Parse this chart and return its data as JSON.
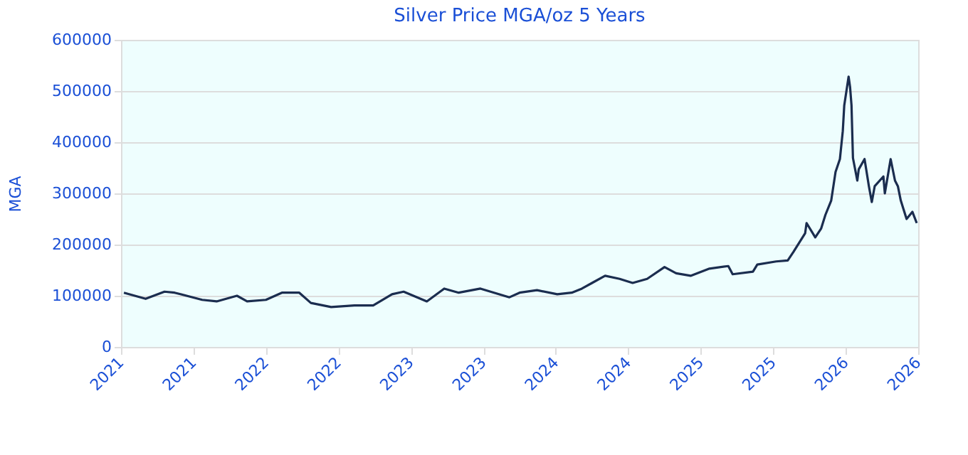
{
  "chart_data": {
    "type": "line",
    "title": "Silver Price MGA/oz 5 Years",
    "ylabel": "MGA",
    "x": [
      2021.02,
      2021.17,
      2021.3,
      2021.37,
      2021.56,
      2021.66,
      2021.8,
      2021.87,
      2022.0,
      2022.11,
      2022.23,
      2022.31,
      2022.45,
      2022.61,
      2022.74,
      2022.87,
      2022.95,
      2023.11,
      2023.23,
      2023.33,
      2023.48,
      2023.68,
      2023.75,
      2023.87,
      2024.01,
      2024.11,
      2024.18,
      2024.25,
      2024.34,
      2024.44,
      2024.53,
      2024.63,
      2024.75,
      2024.83,
      2024.93,
      2025.06,
      2025.19,
      2025.22,
      2025.36,
      2025.39,
      2025.52,
      2025.6,
      2025.64,
      2025.72,
      2025.73,
      2025.79,
      2025.83,
      2025.86,
      2025.9,
      2025.93,
      2025.96,
      2025.98,
      2025.99,
      2026.02,
      2026.03,
      2026.04,
      2026.05,
      2026.08,
      2026.09,
      2026.13,
      2026.16,
      2026.18,
      2026.2,
      2026.26,
      2026.27,
      2026.31,
      2026.34,
      2026.36,
      2026.38,
      2026.42,
      2026.46,
      2026.49
    ],
    "series": [
      {
        "color": "#1b2d4f",
        "values": [
          106000,
          94000,
          108000,
          106000,
          92000,
          89000,
          100000,
          89000,
          92000,
          106000,
          106000,
          86000,
          78000,
          81000,
          81000,
          103000,
          108000,
          89000,
          114000,
          106000,
          114000,
          97000,
          106000,
          111000,
          103000,
          106000,
          114000,
          125000,
          139000,
          133000,
          125000,
          133000,
          156000,
          144000,
          139000,
          153000,
          158000,
          142000,
          147000,
          161000,
          167000,
          169000,
          186000,
          222000,
          242000,
          214000,
          231000,
          258000,
          286000,
          342000,
          367000,
          422000,
          472000,
          528000,
          508000,
          472000,
          369000,
          325000,
          347000,
          367000,
          314000,
          283000,
          314000,
          333000,
          300000,
          367000,
          325000,
          314000,
          286000,
          250000,
          264000,
          242000
        ]
      }
    ],
    "xlim": [
      2021,
      2026.5
    ],
    "xticks": [
      {
        "value": 2021,
        "label": "2021"
      },
      {
        "value": 2021.5,
        "label": "2021"
      },
      {
        "value": 2022,
        "label": "2022"
      },
      {
        "value": 2022.5,
        "label": "2022"
      },
      {
        "value": 2023,
        "label": "2023"
      },
      {
        "value": 2023.5,
        "label": "2023"
      },
      {
        "value": 2024,
        "label": "2024"
      },
      {
        "value": 2024.5,
        "label": "2024"
      },
      {
        "value": 2025,
        "label": "2025"
      },
      {
        "value": 2025.5,
        "label": "2025"
      },
      {
        "value": 2026,
        "label": "2026"
      },
      {
        "value": 2026.5,
        "label": "2026"
      }
    ],
    "ylim": [
      0,
      600000
    ],
    "yticks": [
      0,
      100000,
      200000,
      300000,
      400000,
      500000,
      600000
    ],
    "grid": "y",
    "marker": "none",
    "line_style": "solid"
  }
}
